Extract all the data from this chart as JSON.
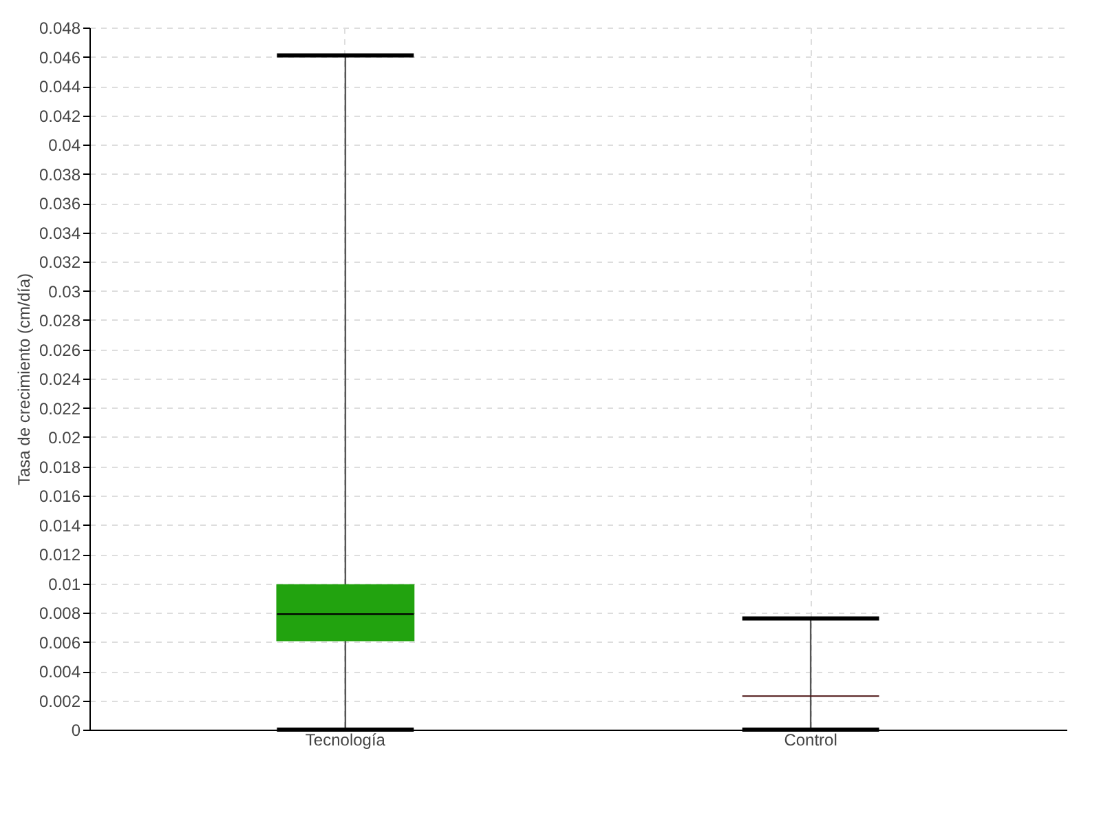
{
  "chart_data": {
    "type": "box",
    "ylabel": "Tasa de crecimiento (cm/día)",
    "categories": [
      "Tecnología",
      "Control"
    ],
    "boxes": [
      {
        "low": 0,
        "q1": 0.0061,
        "median": 0.0079,
        "q3": 0.0099,
        "high": 0.0461
      },
      {
        "low": 0,
        "q1": 0.0023,
        "median": 0.0023,
        "q3": 0.0023,
        "high": 0.0076
      }
    ],
    "colors": [
      "#22a30f",
      "#4a1010"
    ],
    "ylim": [
      0,
      0.048
    ],
    "yticks": [
      0,
      0.002,
      0.004,
      0.006,
      0.008,
      0.01,
      0.012,
      0.014,
      0.016,
      0.018,
      0.02,
      0.022,
      0.024,
      0.026,
      0.028,
      0.03,
      0.032,
      0.034,
      0.036,
      0.038,
      0.04,
      0.042,
      0.044,
      0.046,
      0.048
    ],
    "grid": true
  }
}
